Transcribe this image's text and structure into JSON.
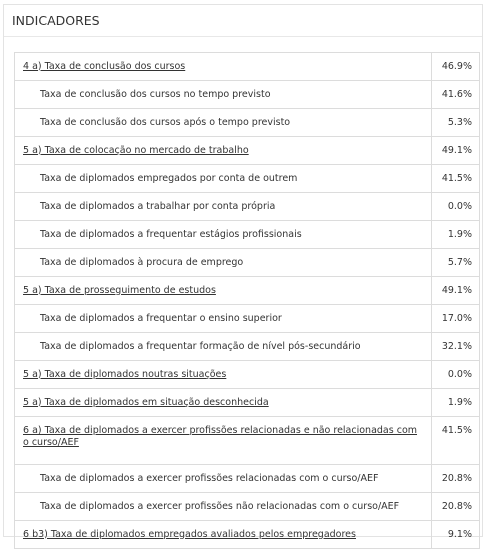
{
  "panel": {
    "title": "INDICADORES"
  },
  "rows": [
    {
      "label": "4 a) Taxa de conclusão dos cursos",
      "value": "46.9%",
      "main": true
    },
    {
      "label": "Taxa de conclusão dos cursos no tempo previsto",
      "value": "41.6%",
      "main": false
    },
    {
      "label": "Taxa de conclusão dos cursos após o tempo previsto",
      "value": "5.3%",
      "main": false
    },
    {
      "label": "5 a) Taxa de colocação no mercado de trabalho",
      "value": "49.1%",
      "main": true
    },
    {
      "label": "Taxa de diplomados empregados por conta de outrem",
      "value": "41.5%",
      "main": false
    },
    {
      "label": "Taxa de diplomados a trabalhar por conta própria",
      "value": "0.0%",
      "main": false
    },
    {
      "label": "Taxa de diplomados a frequentar estágios profissionais",
      "value": "1.9%",
      "main": false
    },
    {
      "label": "Taxa de diplomados à procura de emprego",
      "value": "5.7%",
      "main": false
    },
    {
      "label": "5 a) Taxa de prosseguimento de estudos",
      "value": "49.1%",
      "main": true
    },
    {
      "label": "Taxa de diplomados a frequentar o ensino superior",
      "value": "17.0%",
      "main": false
    },
    {
      "label": "Taxa de diplomados a frequentar formação de nível pós-secundário",
      "value": "32.1%",
      "main": false
    },
    {
      "label": "5 a) Taxa de diplomados noutras situações",
      "value": "0.0%",
      "main": true
    },
    {
      "label": "5 a) Taxa de diplomados em situação desconhecida",
      "value": "1.9%",
      "main": true
    },
    {
      "label": "6 a) Taxa de diplomados a exercer profissões relacionadas e não relacionadas com o curso/AEF",
      "value": "41.5%",
      "main": true
    },
    {
      "label": "Taxa de diplomados a exercer profissões relacionadas com o curso/AEF",
      "value": "20.8%",
      "main": false
    },
    {
      "label": "Taxa de diplomados a exercer profissões não relacionadas com o curso/AEF",
      "value": "20.8%",
      "main": false
    },
    {
      "label": "6 b3) Taxa de diplomados empregados avaliados pelos empregadores",
      "value": "9.1%",
      "main": true
    }
  ]
}
